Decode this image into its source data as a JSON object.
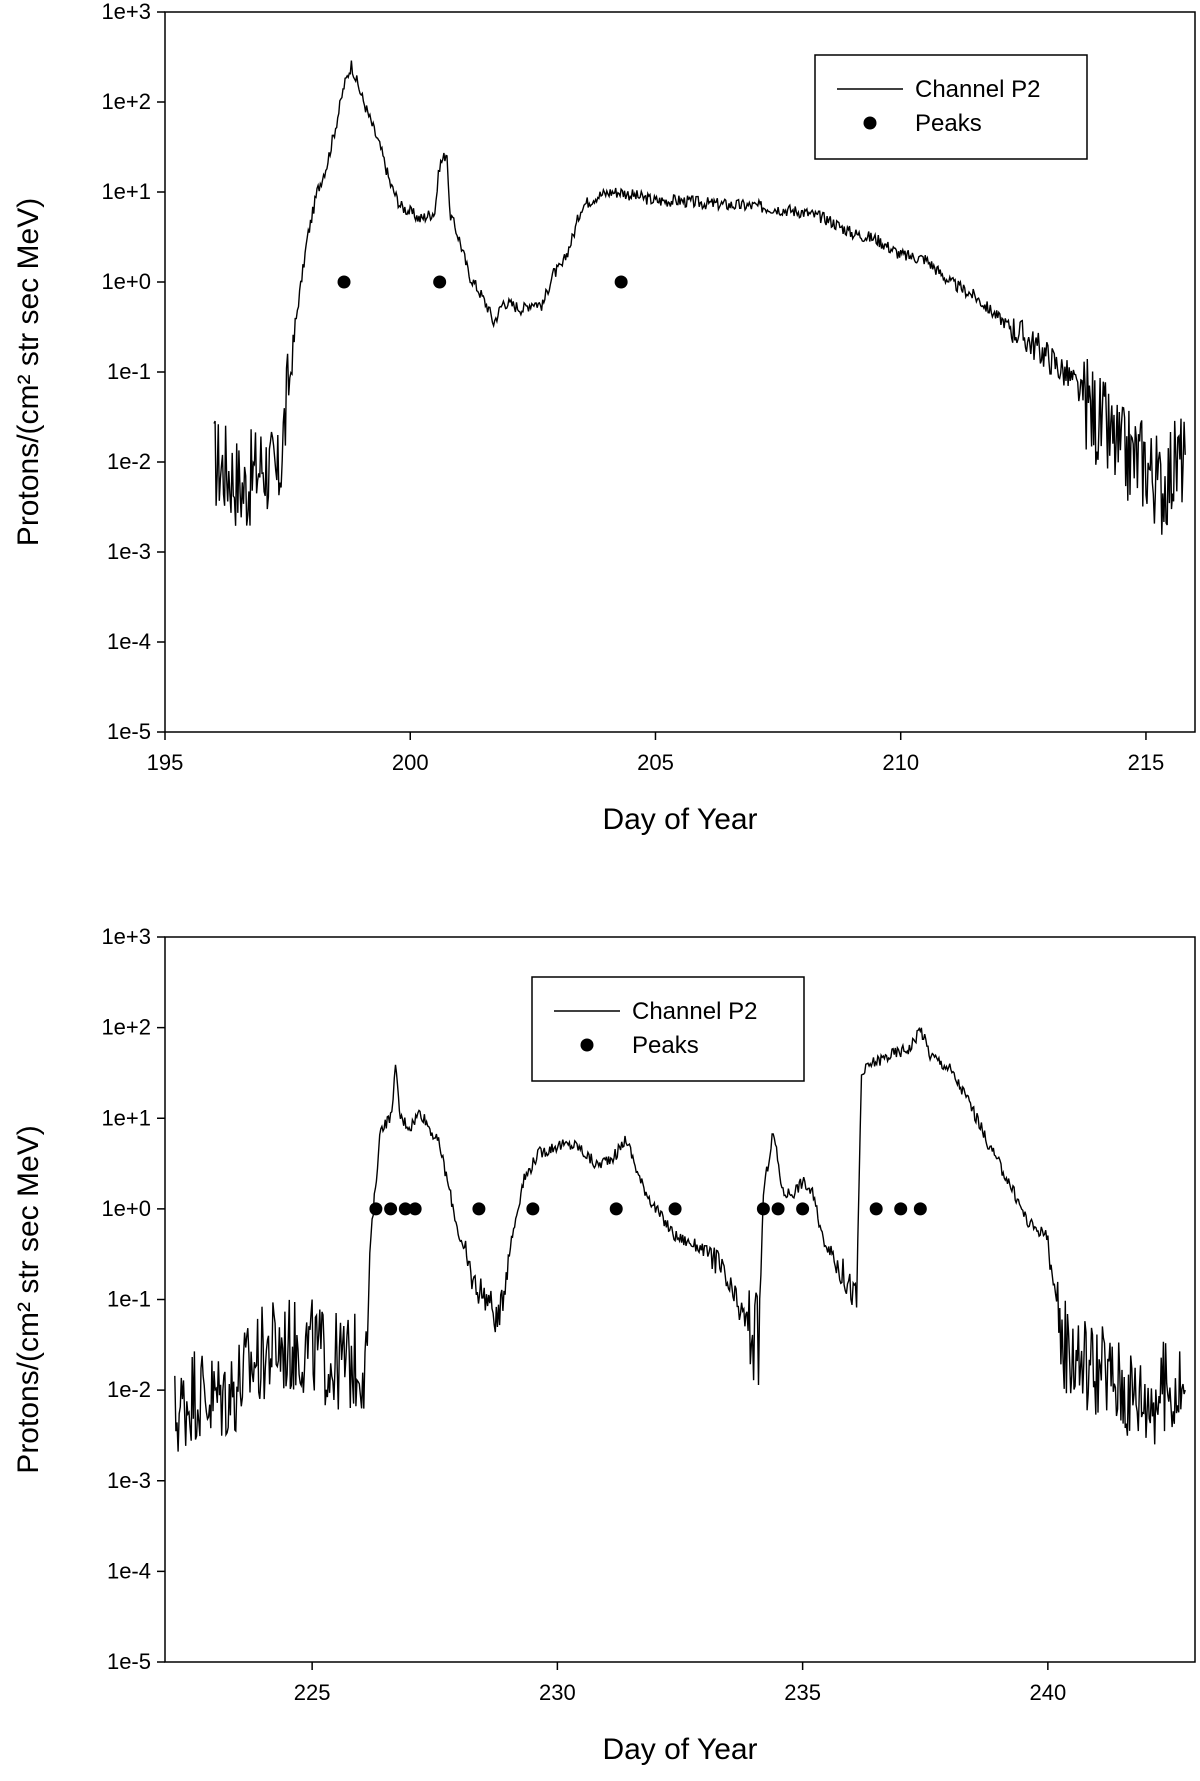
{
  "chart_data": [
    {
      "id": "top",
      "type": "line",
      "yscale": "log",
      "xlabel": "Day of Year",
      "ylabel": "Protons/(cm² str sec MeV)",
      "xlim": [
        195,
        216
      ],
      "ylim": [
        1e-05,
        1000
      ],
      "xticks": [
        195,
        200,
        205,
        210,
        215
      ],
      "xtick_labels": [
        "195",
        "200",
        "205",
        "210",
        "215"
      ],
      "yticks": [
        1e-05,
        0.0001,
        0.001,
        0.01,
        0.1,
        1,
        10,
        100,
        1000
      ],
      "ytick_labels": [
        "1e-5",
        "1e-4",
        "1e-3",
        "1e-2",
        "1e-1",
        "1e+0",
        "1e+1",
        "1e+2",
        "1e+3"
      ],
      "legend": {
        "position": "top-right",
        "entries": [
          "Channel P2",
          "Peaks"
        ]
      },
      "series": [
        {
          "name": "Channel P2",
          "kind": "line",
          "x": [
            196.0,
            196.3,
            196.6,
            197.0,
            197.3,
            197.5,
            197.7,
            197.9,
            198.1,
            198.3,
            198.5,
            198.65,
            198.8,
            199.0,
            199.2,
            199.4,
            199.6,
            199.8,
            200.0,
            200.2,
            200.5,
            200.6,
            200.75,
            200.8,
            201.0,
            201.2,
            201.4,
            201.6,
            201.7,
            201.9,
            202.1,
            202.3,
            202.5,
            202.7,
            202.9,
            203.1,
            203.3,
            203.5,
            203.8,
            204.1,
            204.3,
            204.6,
            205.0,
            205.5,
            206.0,
            206.5,
            207.0,
            207.5,
            208.0,
            208.5,
            209.0,
            209.5,
            210.0,
            210.5,
            211.0,
            211.5,
            212.0,
            212.5,
            213.0,
            213.5,
            214.0,
            214.5,
            215.0,
            215.3,
            215.5,
            215.8
          ],
          "values": [
            0.01,
            0.008,
            0.005,
            0.01,
            0.006,
            0.05,
            0.5,
            3,
            10,
            20,
            60,
            150,
            260,
            120,
            60,
            30,
            12,
            7,
            6,
            5,
            6,
            20,
            28,
            6,
            3,
            1.2,
            0.8,
            0.5,
            0.35,
            0.6,
            0.55,
            0.5,
            0.6,
            0.55,
            1.2,
            1.5,
            3,
            7,
            9,
            10,
            10,
            9,
            8,
            8,
            7.5,
            7.2,
            7,
            6.5,
            6,
            5,
            3.5,
            3,
            2,
            1.8,
            1,
            0.7,
            0.4,
            0.25,
            0.15,
            0.08,
            0.03,
            0.012,
            0.01,
            0.005,
            0.008,
            0.012
          ]
        },
        {
          "name": "Peaks",
          "kind": "scatter",
          "x": [
            198.65,
            200.6,
            204.3
          ],
          "values": [
            1,
            1,
            1
          ]
        }
      ]
    },
    {
      "id": "bottom",
      "type": "line",
      "yscale": "log",
      "xlabel": "Day of Year",
      "ylabel": "Protons/(cm² str sec MeV)",
      "xlim": [
        222,
        243
      ],
      "ylim": [
        1e-05,
        1000
      ],
      "xticks": [
        225,
        230,
        235,
        240
      ],
      "xtick_labels": [
        "225",
        "230",
        "235",
        "240"
      ],
      "yticks": [
        1e-05,
        0.0001,
        0.001,
        0.01,
        0.1,
        1,
        10,
        100,
        1000
      ],
      "ytick_labels": [
        "1e-5",
        "1e-4",
        "1e-3",
        "1e-2",
        "1e-1",
        "1e+0",
        "1e+1",
        "1e+2",
        "1e+3"
      ],
      "legend": {
        "position": "top-center",
        "entries": [
          "Channel P2",
          "Peaks"
        ]
      },
      "series": [
        {
          "name": "Channel P2",
          "kind": "line",
          "x": [
            222.2,
            222.6,
            223.0,
            223.4,
            223.8,
            224.2,
            224.6,
            225.0,
            225.4,
            225.8,
            226.1,
            226.2,
            226.4,
            226.6,
            226.7,
            226.8,
            227.0,
            227.2,
            227.6,
            228.0,
            228.3,
            228.6,
            228.8,
            229.0,
            229.3,
            229.6,
            230.0,
            230.4,
            230.8,
            231.2,
            231.4,
            231.7,
            232.0,
            232.4,
            232.8,
            233.2,
            233.6,
            234.0,
            234.1,
            234.2,
            234.4,
            234.6,
            234.8,
            235.0,
            235.2,
            235.4,
            235.8,
            236.1,
            236.2,
            236.4,
            236.8,
            237.2,
            237.4,
            237.6,
            238.0,
            238.4,
            238.8,
            239.2,
            239.6,
            240.0,
            240.2,
            240.4,
            240.8,
            241.2,
            241.6,
            242.0,
            242.4,
            242.8
          ],
          "values": [
            0.005,
            0.01,
            0.008,
            0.01,
            0.02,
            0.03,
            0.03,
            0.03,
            0.02,
            0.02,
            0.02,
            0.5,
            8,
            10,
            35,
            10,
            8,
            12,
            5,
            0.5,
            0.15,
            0.1,
            0.05,
            0.3,
            2,
            4,
            5,
            5,
            3,
            4,
            6,
            2,
            1,
            0.5,
            0.4,
            0.3,
            0.1,
            0.04,
            0.03,
            1.5,
            7,
            1.5,
            1.5,
            2,
            1.5,
            0.5,
            0.2,
            0.1,
            30,
            40,
            50,
            60,
            100,
            50,
            35,
            15,
            5,
            2,
            0.7,
            0.5,
            0.05,
            0.03,
            0.02,
            0.015,
            0.01,
            0.008,
            0.01,
            0.01
          ]
        },
        {
          "name": "Peaks",
          "kind": "scatter",
          "x": [
            226.3,
            226.6,
            226.9,
            227.1,
            228.4,
            229.5,
            231.2,
            232.4,
            234.2,
            234.5,
            235.0,
            236.5,
            237.0,
            237.4
          ],
          "values": [
            1,
            1,
            1,
            1,
            1,
            1,
            1,
            1,
            1,
            1,
            1,
            1,
            1,
            1
          ]
        }
      ]
    }
  ]
}
